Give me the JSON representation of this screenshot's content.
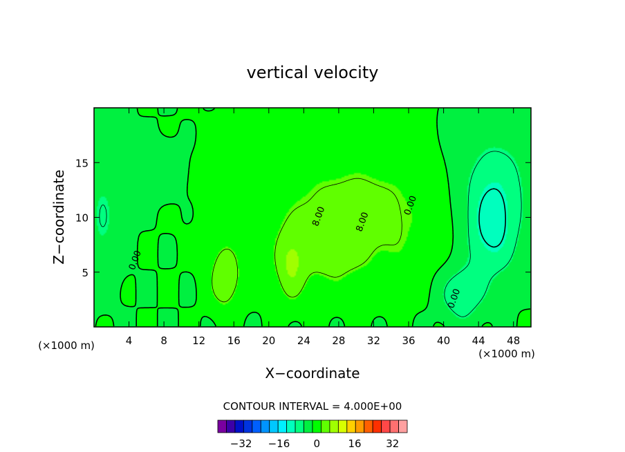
{
  "chart_data": {
    "type": "heatmap",
    "title": "vertical velocity",
    "xlabel": "X−coordinate",
    "ylabel": "Z−coordinate",
    "x_unit_label": "(×1000 m)",
    "y_unit_label": "(×1000 m)",
    "xlim": [
      0,
      50
    ],
    "ylim": [
      0,
      20
    ],
    "x_ticks": [
      4,
      8,
      12,
      16,
      20,
      24,
      28,
      32,
      36,
      40,
      44,
      48
    ],
    "y_ticks": [
      5,
      10,
      15
    ],
    "contour_interval_text": "CONTOUR INTERVAL =  4.000E+00",
    "contour_labels": [
      {
        "text": "0.00",
        "x": 5.0,
        "z": 6.0
      },
      {
        "text": "8.00",
        "x": 26.0,
        "z": 10.0
      },
      {
        "text": "8.00",
        "x": 31.0,
        "z": 9.5
      },
      {
        "text": "0.00",
        "x": 36.5,
        "z": 11.0
      },
      {
        "text": "0.00",
        "x": 41.5,
        "z": 2.5
      }
    ],
    "colorbar": {
      "min": -40,
      "max": 40,
      "step": 4,
      "tick_values": [
        -32,
        -16,
        0,
        16,
        32
      ],
      "tick_labels": [
        "−32",
        "−16",
        "0",
        "16",
        "32"
      ],
      "colors": [
        "#7a00a0",
        "#3c00a8",
        "#0010c8",
        "#0034e0",
        "#0060ff",
        "#0094ff",
        "#00c8ff",
        "#00f0ff",
        "#00ffbe",
        "#00ff80",
        "#00f040",
        "#00ff00",
        "#60ff00",
        "#a0ff00",
        "#d8ff00",
        "#ffd000",
        "#ff9c00",
        "#ff6000",
        "#ff3000",
        "#ff4848",
        "#ff7070",
        "#ffa0a0"
      ]
    },
    "field_features": [
      {
        "x": 30,
        "z": 10,
        "sx": 10,
        "sz": 6,
        "amp": 5.5
      },
      {
        "x": 15,
        "z": 4.5,
        "sx": 1.8,
        "sz": 3.0,
        "amp": 7
      },
      {
        "x": 22.5,
        "z": 5.5,
        "sx": 1.8,
        "sz": 3.2,
        "amp": 6
      },
      {
        "x": 27,
        "z": 7,
        "sx": 3,
        "sz": 3,
        "amp": 3
      },
      {
        "x": 45.5,
        "z": 9,
        "sx": 3,
        "sz": 4.5,
        "amp": -9
      },
      {
        "x": 42,
        "z": 3,
        "sx": 2.5,
        "sz": 2.5,
        "amp": -7
      },
      {
        "x": 46,
        "z": 14,
        "sx": 5,
        "sz": 5,
        "amp": -4
      },
      {
        "x": 1,
        "z": 10,
        "sx": 2,
        "sz": 6,
        "amp": -4
      },
      {
        "x": 8,
        "z": 14,
        "sx": 2,
        "sz": 2,
        "amp": -1.5
      }
    ]
  }
}
